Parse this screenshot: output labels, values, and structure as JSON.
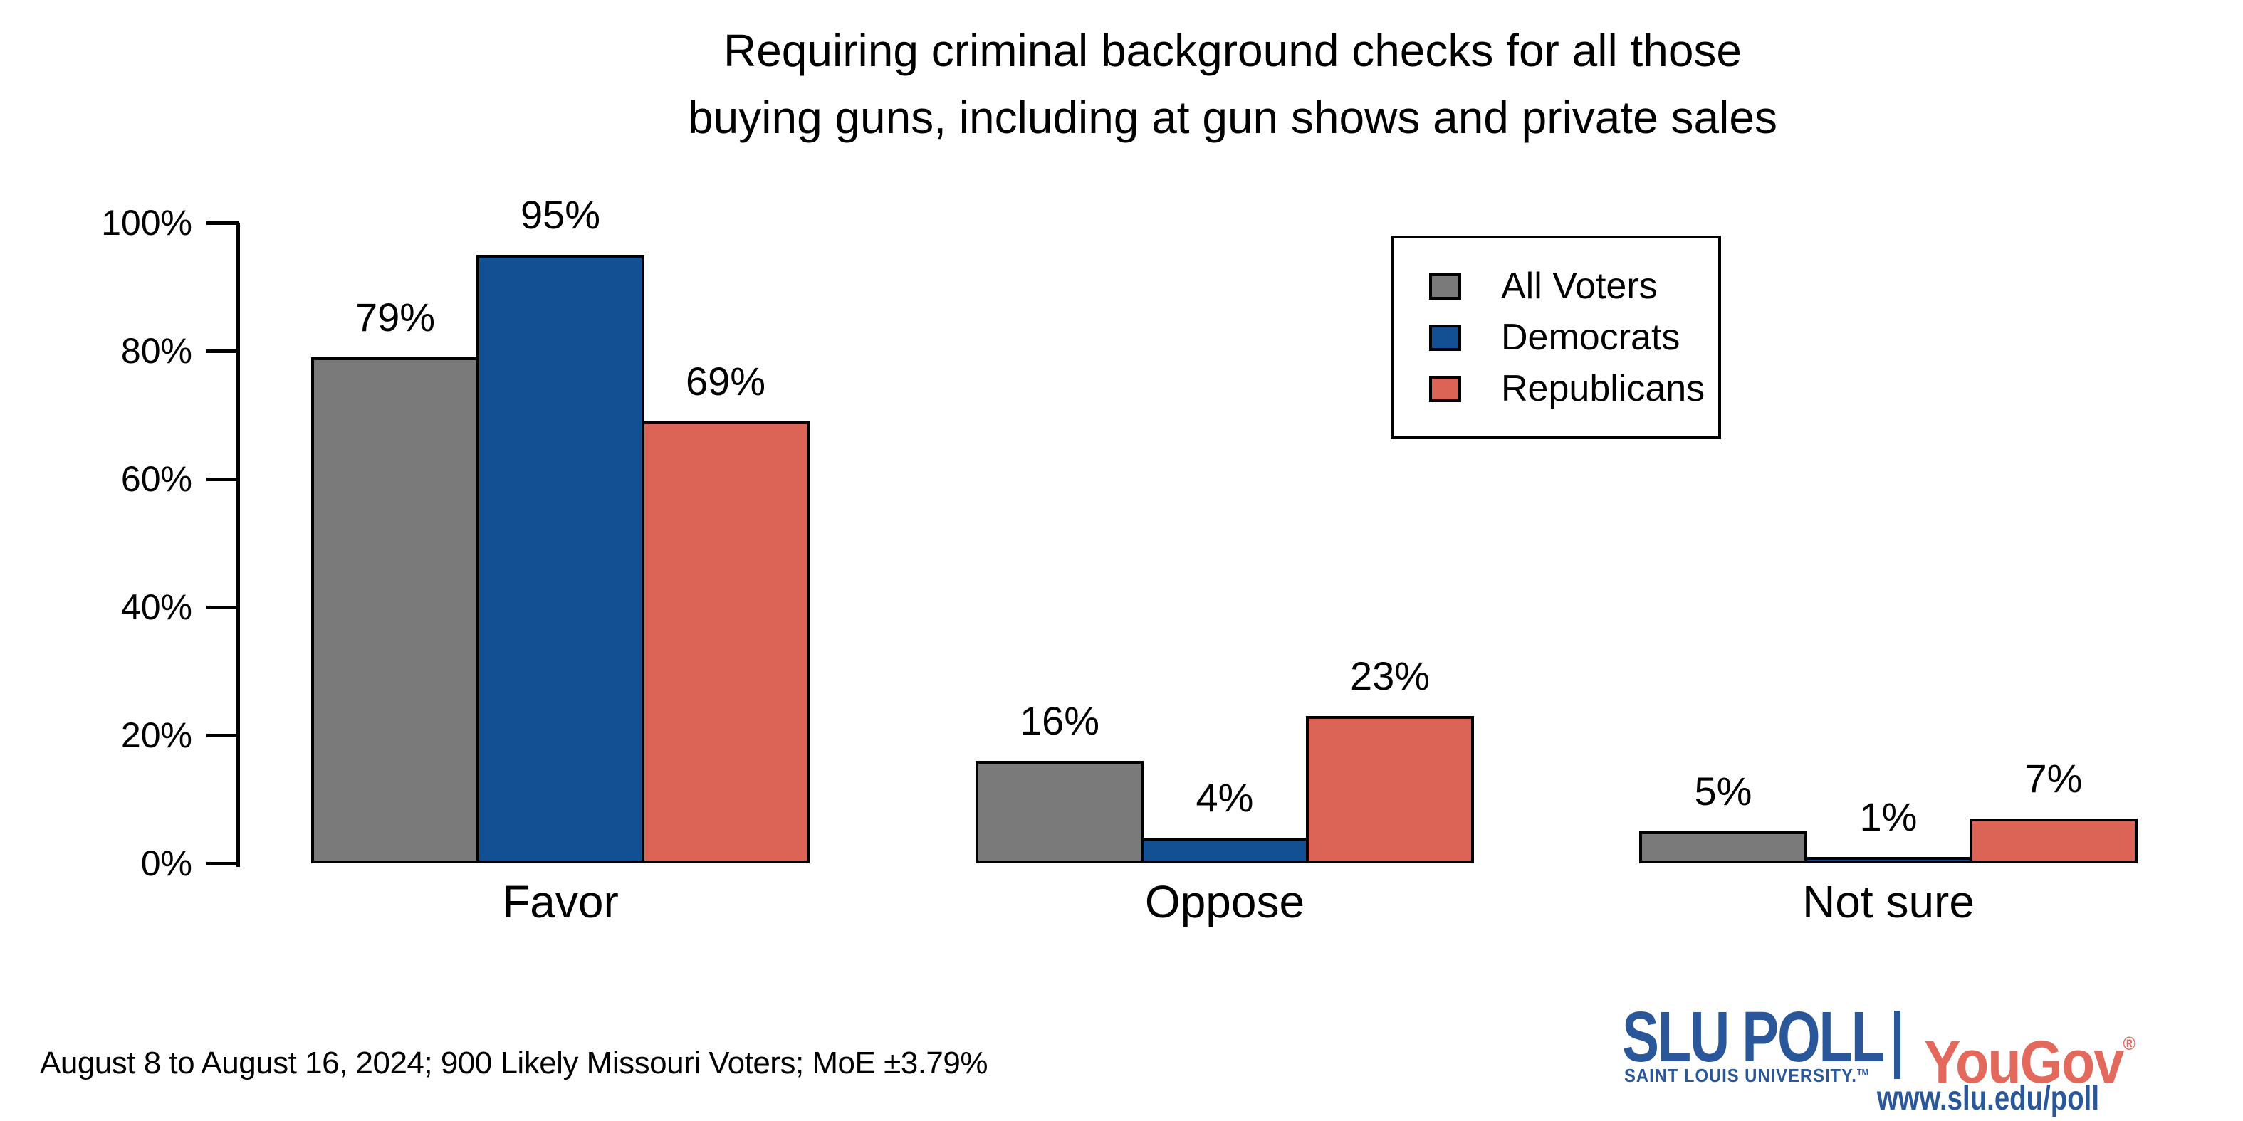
{
  "title": {
    "line1": "Requiring criminal background checks for all those",
    "line2": "buying guns, including at gun shows and private sales"
  },
  "chart_data": {
    "type": "bar",
    "categories": [
      "Favor",
      "Oppose",
      "Not sure"
    ],
    "series": [
      {
        "name": "All Voters",
        "color": "#7a7a7a",
        "values": [
          79,
          16,
          5
        ]
      },
      {
        "name": "Democrats",
        "color": "#124f93",
        "values": [
          95,
          4,
          1
        ]
      },
      {
        "name": "Republicans",
        "color": "#db6456",
        "values": [
          69,
          23,
          7
        ]
      }
    ],
    "value_suffix": "%",
    "ylim": [
      0,
      100
    ],
    "yticks": [
      0,
      20,
      40,
      60,
      80,
      100
    ],
    "ytick_suffix": "%",
    "grid": false,
    "legend_position": "upper right",
    "bar_border_color": "#000000"
  },
  "footnote": "August 8 to August 16, 2024; 900 Likely Missouri Voters; MoE ±3.79%",
  "branding": {
    "slu_title": "SLU POLL",
    "slu_subtitle": "SAINT LOUIS UNIVERSITY.",
    "slu_tm": "TM",
    "yougov": "YouGov",
    "registered_mark": "®",
    "url": "www.slu.edu/poll",
    "slu_blue": "#2a5799",
    "yougov_red": "#e2695c"
  }
}
